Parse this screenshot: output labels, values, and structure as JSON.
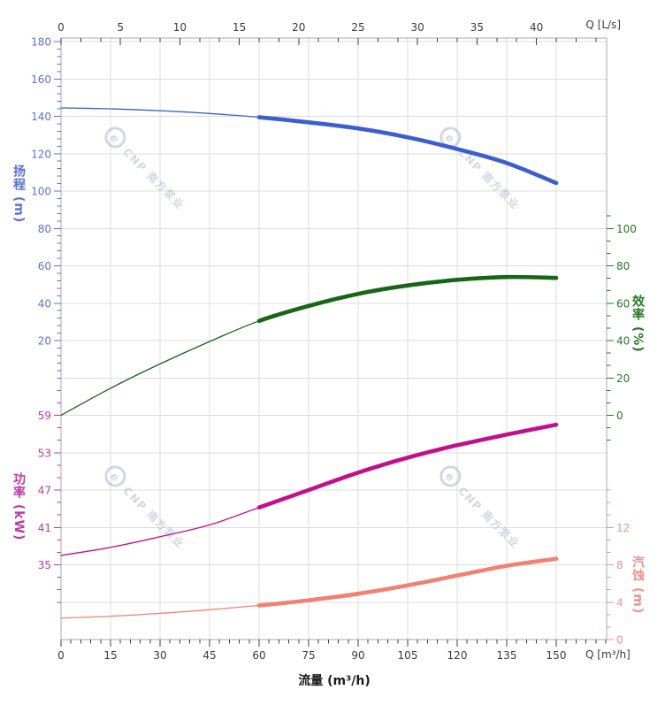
{
  "labels": {
    "head_axis": "扬程 (m)",
    "power_axis": "功率 (kW)",
    "efficiency_axis": "效率 (%)",
    "npsh_axis": "汽蚀 (m)",
    "flow_axis": "流量 (m³/h)",
    "top_unit": "Q [L/s]",
    "bottom_unit": "Q [m³/h]"
  },
  "watermark": {
    "logo_letter": "e",
    "text": "CNP 南方泵业",
    "color": "#aab0c6"
  },
  "chart_data": {
    "type": "line",
    "title": "",
    "grid": "on",
    "grid_rows": 16,
    "x_bottom": {
      "label": "流量 (m³/h)",
      "unit": "m³/h",
      "ticks": [
        0,
        15,
        30,
        45,
        60,
        75,
        90,
        105,
        120,
        135,
        150
      ],
      "minor_per_major": 5,
      "range": [
        0,
        165.3
      ],
      "tick_color": "#3c3c3c"
    },
    "x_top": {
      "label": "Q [L/s]",
      "unit": "L/s",
      "ticks": [
        0,
        5,
        10,
        15,
        20,
        25,
        30,
        35,
        40
      ],
      "minor_per_major": 3,
      "range": [
        0,
        45.9
      ],
      "tick_color": "#3c3c3c"
    },
    "y_axes": {
      "head": {
        "label": "扬程 (m)",
        "unit": "m",
        "tick_color": "#5873cf",
        "curve_color": "#3c5ed0",
        "ticks": [
          180,
          160,
          140,
          120,
          100,
          80,
          60,
          40,
          20
        ],
        "first_tick_row": 0,
        "minor_per_major": 5
      },
      "efficiency": {
        "label": "效率 (%)",
        "unit": "%",
        "tick_color": "#227a22",
        "curve_color": "#166616",
        "ticks": [
          100,
          80,
          60,
          40,
          20,
          0
        ],
        "first_tick_row": 5,
        "minor_per_major": 3
      },
      "power": {
        "label": "功率 (kW)",
        "unit": "kW",
        "tick_color": "#bd38a2",
        "curve_color": "#c40f8c",
        "ticks": [
          59,
          53,
          47,
          41,
          35
        ],
        "first_tick_row": 10,
        "minor_per_major": 3
      },
      "npsh": {
        "label": "汽蚀 (m)",
        "unit": "m",
        "tick_color": "#ef9288",
        "curve_color": "#f28171",
        "ticks": [
          12,
          8,
          4,
          0
        ],
        "first_tick_row": 13,
        "minor_per_major": 3
      }
    },
    "series": [
      {
        "name": "扬程",
        "axis": "head",
        "thick_from": 60,
        "q": [
          0,
          15,
          30,
          45,
          60,
          75,
          90,
          105,
          120,
          135,
          150
        ],
        "v": [
          144.5,
          144.0,
          143.0,
          141.5,
          139.5,
          136.8,
          133.5,
          128.8,
          122.5,
          115.0,
          104.3
        ]
      },
      {
        "name": "效率",
        "axis": "efficiency",
        "thick_from": 60,
        "q": [
          0,
          15,
          30,
          45,
          60,
          75,
          90,
          105,
          120,
          135,
          150
        ],
        "v": [
          0,
          14.5,
          27.5,
          39.5,
          50.5,
          58.5,
          65.0,
          69.5,
          72.5,
          74.0,
          73.5
        ]
      },
      {
        "name": "功率",
        "axis": "power",
        "thick_from": 60,
        "q": [
          0,
          15,
          30,
          45,
          60,
          75,
          90,
          105,
          120,
          135,
          150
        ],
        "v": [
          36.5,
          37.8,
          39.5,
          41.4,
          44.2,
          47.0,
          49.8,
          52.2,
          54.2,
          55.9,
          57.5
        ]
      },
      {
        "name": "汽蚀",
        "axis": "npsh",
        "thick_from": 60,
        "q": [
          0,
          15,
          30,
          45,
          60,
          75,
          90,
          105,
          120,
          135,
          150
        ],
        "v": [
          2.3,
          2.5,
          2.8,
          3.2,
          3.65,
          4.2,
          4.9,
          5.8,
          6.85,
          7.9,
          8.65
        ]
      }
    ]
  }
}
